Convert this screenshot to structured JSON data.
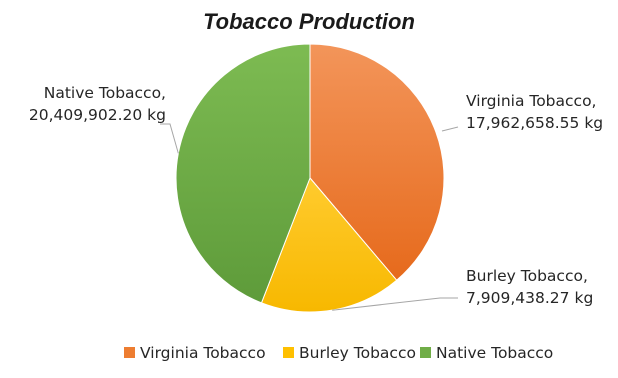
{
  "chart_data": {
    "type": "pie",
    "title": "Tobacco Production",
    "unit": "kg",
    "categories": [
      "Virginia Tobacco",
      "Burley Tobacco",
      "Native Tobacco"
    ],
    "values": [
      17962658.55,
      7909438.27,
      20409902.2
    ],
    "data_labels": [
      [
        "Virginia Tobacco,",
        "17,962,658.55 kg"
      ],
      [
        "Burley Tobacco,",
        "7,909,438.27 kg"
      ],
      [
        "Native Tobacco,",
        "20,409,902.20 kg"
      ]
    ],
    "colors": [
      "#ED7D31",
      "#FFC000",
      "#70AD47"
    ],
    "start_angle_deg": 0,
    "direction": "clockwise",
    "legend_position": "bottom",
    "data_label_style": "outside-with-leader-lines"
  }
}
